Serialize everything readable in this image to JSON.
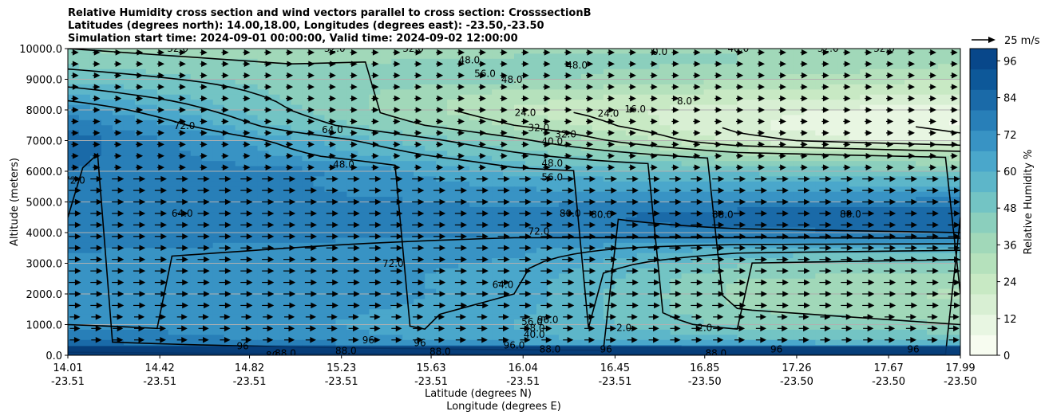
{
  "title": {
    "line1": "Relative Humidity cross section and wind vectors parallel to cross section: CrosssectionB",
    "line2": "Latitudes (degrees north): 14.00,18.00, Longitudes (degrees east): -23.50,-23.50",
    "line3": "Simulation start time: 2024-09-01 00:00:00, Valid time: 2024-09-02 12:00:00"
  },
  "colors": {
    "scale": [
      "#f7fcf0",
      "#e8f6e2",
      "#d8efd3",
      "#c8e9c4",
      "#b5e1bc",
      "#a1d8b9",
      "#8bcfbd",
      "#73c4c4",
      "#5db6c9",
      "#4aa7cb",
      "#3893c4",
      "#287fb8",
      "#1a6aa8",
      "#0d5899",
      "#08478a"
    ]
  },
  "chart_data": {
    "type": "heatmap",
    "xlabel": "Latitude (degrees N)",
    "xlabel2": "Longitude (degrees E)",
    "ylabel": "Altitude (meters)",
    "ylim": [
      0,
      10000
    ],
    "yticks": [
      "0.0",
      "1000.0",
      "2000.0",
      "3000.0",
      "4000.0",
      "5000.0",
      "6000.0",
      "7000.0",
      "8000.0",
      "9000.0",
      "10000.0"
    ],
    "xticks": [
      {
        "lat": "14.01",
        "lon": "-23.51"
      },
      {
        "lat": "14.42",
        "lon": "-23.51"
      },
      {
        "lat": "14.82",
        "lon": "-23.51"
      },
      {
        "lat": "15.23",
        "lon": "-23.51"
      },
      {
        "lat": "15.63",
        "lon": "-23.51"
      },
      {
        "lat": "16.04",
        "lon": "-23.51"
      },
      {
        "lat": "16.45",
        "lon": "-23.51"
      },
      {
        "lat": "16.85",
        "lon": "-23.50"
      },
      {
        "lat": "17.26",
        "lon": "-23.50"
      },
      {
        "lat": "17.67",
        "lon": "-23.50"
      },
      {
        "lat": "17.99",
        "lon": "-23.50"
      }
    ],
    "lat_range": [
      14.01,
      17.99
    ],
    "colorbar": {
      "label": "Relative Humidity %",
      "ticks": [
        "0",
        "12",
        "24",
        "36",
        "48",
        "60",
        "72",
        "84",
        "96"
      ],
      "range": [
        0,
        100
      ]
    },
    "quiver_key": "25 m/s",
    "grid": true,
    "rh_profile": {
      "altitudes": [
        0,
        500,
        1000,
        1500,
        2000,
        2500,
        3000,
        3500,
        4000,
        4500,
        5000,
        5500,
        6000,
        6500,
        7000,
        7500,
        8000,
        8500,
        9000,
        9500,
        10000
      ],
      "lat": [
        14.01,
        15.0,
        16.0,
        17.0,
        17.99
      ],
      "values": [
        [
          90,
          90,
          90,
          90,
          90
        ],
        [
          80,
          72,
          62,
          55,
          52
        ],
        [
          72,
          68,
          60,
          45,
          40
        ],
        [
          72,
          70,
          62,
          40,
          35
        ],
        [
          70,
          72,
          64,
          38,
          32
        ],
        [
          70,
          70,
          64,
          40,
          36
        ],
        [
          72,
          70,
          66,
          48,
          45
        ],
        [
          74,
          72,
          68,
          60,
          58
        ],
        [
          78,
          76,
          74,
          78,
          80
        ],
        [
          80,
          78,
          76,
          86,
          88
        ],
        [
          78,
          76,
          72,
          74,
          76
        ],
        [
          76,
          74,
          66,
          62,
          62
        ],
        [
          80,
          76,
          58,
          52,
          48
        ],
        [
          82,
          66,
          50,
          36,
          30
        ],
        [
          84,
          62,
          42,
          18,
          10
        ],
        [
          78,
          52,
          32,
          14,
          6
        ],
        [
          70,
          48,
          26,
          16,
          8
        ],
        [
          60,
          46,
          30,
          24,
          20
        ],
        [
          52,
          44,
          42,
          34,
          26
        ],
        [
          46,
          40,
          42,
          40,
          34
        ],
        [
          40,
          34,
          38,
          40,
          36
        ]
      ]
    },
    "contour_levels": [
      "8.0",
      "16.0",
      "24.0",
      "32.0",
      "40.0",
      "48.0",
      "56.0",
      "64.0",
      "72.0",
      "80.0",
      "88.0",
      "96.0"
    ],
    "contour_labels": [
      {
        "text": "32.0",
        "lat": 14.5,
        "alt": 10000
      },
      {
        "text": "32.0",
        "lat": 15.2,
        "alt": 10000
      },
      {
        "text": "32.0",
        "lat": 15.55,
        "alt": 10000
      },
      {
        "text": "48.0",
        "lat": 15.8,
        "alt": 9620
      },
      {
        "text": "0.0",
        "lat": 16.65,
        "alt": 9900
      },
      {
        "text": "48.0",
        "lat": 17.0,
        "alt": 10000
      },
      {
        "text": "32.0",
        "lat": 17.4,
        "alt": 10000
      },
      {
        "text": "32.0",
        "lat": 17.65,
        "alt": 10000
      },
      {
        "text": "56.0",
        "lat": 15.87,
        "alt": 9180
      },
      {
        "text": "48.0",
        "lat": 15.99,
        "alt": 8990
      },
      {
        "text": "48.0",
        "lat": 16.28,
        "alt": 9460
      },
      {
        "text": "24.0",
        "lat": 16.05,
        "alt": 7910
      },
      {
        "text": "24.0",
        "lat": 16.42,
        "alt": 7880
      },
      {
        "text": "16.0",
        "lat": 16.54,
        "alt": 8020
      },
      {
        "text": "8.0",
        "lat": 16.76,
        "alt": 8280
      },
      {
        "text": "32.0",
        "lat": 16.11,
        "alt": 7410
      },
      {
        "text": "32.0",
        "lat": 16.23,
        "alt": 7210
      },
      {
        "text": "40.0",
        "lat": 16.17,
        "alt": 6980
      },
      {
        "text": "48.0",
        "lat": 16.17,
        "alt": 6260
      },
      {
        "text": "56.0",
        "lat": 16.17,
        "alt": 5800
      },
      {
        "text": "72.0",
        "lat": 14.53,
        "alt": 7480
      },
      {
        "text": "64.0",
        "lat": 15.19,
        "alt": 7350
      },
      {
        "text": "48.0",
        "lat": 15.24,
        "alt": 6220
      },
      {
        "text": "72.0",
        "lat": 14.04,
        "alt": 5700
      },
      {
        "text": "64.0",
        "lat": 14.52,
        "alt": 4620
      },
      {
        "text": "80.0",
        "lat": 16.25,
        "alt": 4620
      },
      {
        "text": "80.0",
        "lat": 16.39,
        "alt": 4580
      },
      {
        "text": "88.0",
        "lat": 16.93,
        "alt": 4580
      },
      {
        "text": "88.0",
        "lat": 17.5,
        "alt": 4600
      },
      {
        "text": "72.0",
        "lat": 16.11,
        "alt": 4040
      },
      {
        "text": "72.0",
        "lat": 15.46,
        "alt": 2990
      },
      {
        "text": "64.0",
        "lat": 15.95,
        "alt": 2300
      },
      {
        "text": "56.0",
        "lat": 16.08,
        "alt": 1090
      },
      {
        "text": "96.0",
        "lat": 16.15,
        "alt": 1160
      },
      {
        "text": "48.0",
        "lat": 16.09,
        "alt": 880
      },
      {
        "text": "40.0",
        "lat": 16.09,
        "alt": 680
      },
      {
        "text": "96.0",
        "lat": 16.0,
        "alt": 320
      },
      {
        "text": "88.0",
        "lat": 16.16,
        "alt": 200
      },
      {
        "text": "88.0",
        "lat": 15.67,
        "alt": 120
      },
      {
        "text": "88.0",
        "lat": 15.25,
        "alt": 140
      },
      {
        "text": "88.0",
        "lat": 14.98,
        "alt": 60
      },
      {
        "text": "96",
        "lat": 14.79,
        "alt": 300
      },
      {
        "text": "96",
        "lat": 15.35,
        "alt": 500
      },
      {
        "text": "96",
        "lat": 15.58,
        "alt": 400
      },
      {
        "text": "96",
        "lat": 16.41,
        "alt": 200
      },
      {
        "text": "96",
        "lat": 17.17,
        "alt": 200
      },
      {
        "text": "96",
        "lat": 17.78,
        "alt": 200
      },
      {
        "text": "2.0",
        "lat": 16.49,
        "alt": 900
      },
      {
        "text": "2.0",
        "lat": 16.85,
        "alt": 900
      },
      {
        "text": "88.0",
        "lat": 16.9,
        "alt": 60
      },
      {
        "text": "80",
        "lat": 14.92,
        "alt": 0
      }
    ]
  }
}
